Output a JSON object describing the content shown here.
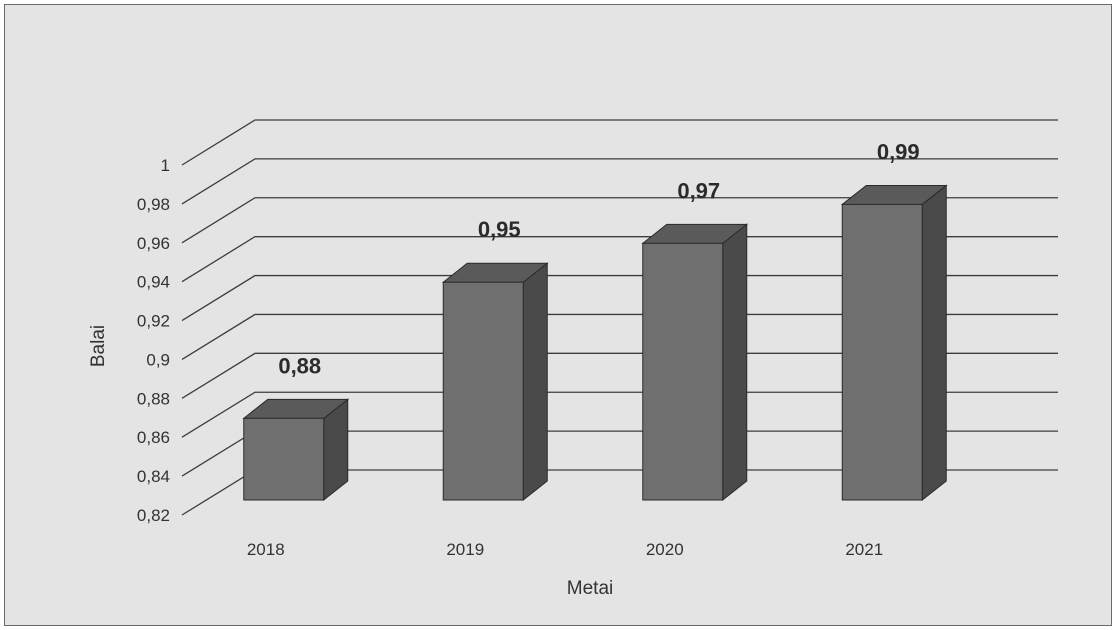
{
  "chart_data": {
    "type": "bar",
    "style": "3d-column",
    "categories": [
      "2018",
      "2019",
      "2020",
      "2021"
    ],
    "values": [
      0.88,
      0.95,
      0.97,
      0.99
    ],
    "data_labels": [
      "0,88",
      "0,95",
      "0,97",
      "0,99"
    ],
    "y_ticks": [
      0.82,
      0.84,
      0.86,
      0.88,
      0.9,
      0.92,
      0.94,
      0.96,
      0.98,
      1
    ],
    "y_tick_labels": [
      "0,82",
      "0,84",
      "0,86",
      "0,88",
      "0,9",
      "0,92",
      "0,94",
      "0,96",
      "0,98",
      "1"
    ],
    "ylim": [
      0.82,
      1
    ],
    "xlabel": "Metai",
    "ylabel": "Balai",
    "grid": true,
    "legend": "none",
    "colors": {
      "bar_front": "#6f6f6f",
      "bar_side": "#4a4a4a",
      "bar_top": "#5a5a5a",
      "grid": "#3c3c3c"
    }
  }
}
